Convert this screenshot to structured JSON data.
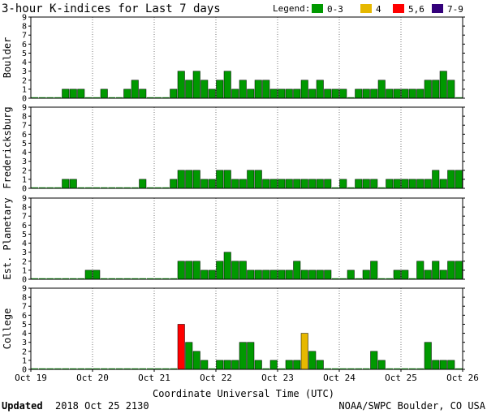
{
  "header": {
    "title": "3-hour K-indices for Last 7 days",
    "legend_label": "Legend:",
    "legend": [
      {
        "label": "0-3",
        "color": "#009900"
      },
      {
        "label": "4",
        "color": "#e6b800"
      },
      {
        "label": "5,6",
        "color": "#ff0000"
      },
      {
        "label": "7-9",
        "color": "#33007a"
      }
    ]
  },
  "footer": {
    "updated_label": "Updated",
    "updated_value": "2018 Oct 25 2130",
    "credit": "NOAA/SWPC Boulder, CO USA"
  },
  "chart_data": {
    "type": "bar",
    "xlabel": "Coordinate Universal Time (UTC)",
    "x_ticks": [
      "Oct 19",
      "Oct 20",
      "Oct 21",
      "Oct 22",
      "Oct 23",
      "Oct 24",
      "Oct 25",
      "Oct 26"
    ],
    "y_ticks": [
      0,
      1,
      2,
      3,
      4,
      5,
      6,
      7,
      8,
      9
    ],
    "ylim": [
      0,
      9
    ],
    "bins_per_day": 8,
    "panels": [
      {
        "name": "Boulder",
        "values": [
          0,
          0,
          0,
          0,
          1,
          1,
          1,
          0,
          0,
          1,
          0,
          0,
          1,
          2,
          1,
          0,
          0,
          0,
          1,
          3,
          2,
          3,
          2,
          1,
          2,
          3,
          1,
          2,
          1,
          2,
          2,
          1,
          1,
          1,
          1,
          2,
          1,
          2,
          1,
          1,
          1,
          0,
          1,
          1,
          1,
          2,
          1,
          1,
          1,
          1,
          1,
          2,
          2,
          3,
          2,
          0
        ]
      },
      {
        "name": "Fredericksburg",
        "values": [
          0,
          0,
          0,
          0,
          1,
          1,
          0,
          0,
          0,
          0,
          0,
          0,
          0,
          0,
          1,
          0,
          0,
          0,
          1,
          2,
          2,
          2,
          1,
          1,
          2,
          2,
          1,
          1,
          2,
          2,
          1,
          1,
          1,
          1,
          1,
          1,
          1,
          1,
          1,
          0,
          1,
          0,
          1,
          1,
          1,
          0,
          1,
          1,
          1,
          1,
          1,
          1,
          2,
          1,
          2,
          2
        ]
      },
      {
        "name": "Est. Planetary",
        "values": [
          0,
          0,
          0,
          0,
          0,
          0,
          0,
          1,
          1,
          0,
          0,
          0,
          0,
          0,
          0,
          0,
          0,
          0,
          0,
          2,
          2,
          2,
          1,
          1,
          2,
          3,
          2,
          2,
          1,
          1,
          1,
          1,
          1,
          1,
          2,
          1,
          1,
          1,
          1,
          0,
          0,
          1,
          0,
          1,
          2,
          0,
          0,
          1,
          1,
          0,
          2,
          1,
          2,
          1,
          2,
          2
        ]
      },
      {
        "name": "College",
        "values": [
          0,
          0,
          0,
          0,
          0,
          0,
          0,
          0,
          0,
          0,
          0,
          0,
          0,
          0,
          0,
          0,
          0,
          0,
          0,
          5,
          3,
          2,
          1,
          0,
          1,
          1,
          1,
          3,
          3,
          1,
          0,
          1,
          0,
          1,
          1,
          4,
          2,
          1,
          0,
          0,
          0,
          0,
          0,
          0,
          2,
          1,
          0,
          0,
          0,
          0,
          0,
          3,
          1,
          1,
          1,
          0
        ]
      }
    ]
  }
}
